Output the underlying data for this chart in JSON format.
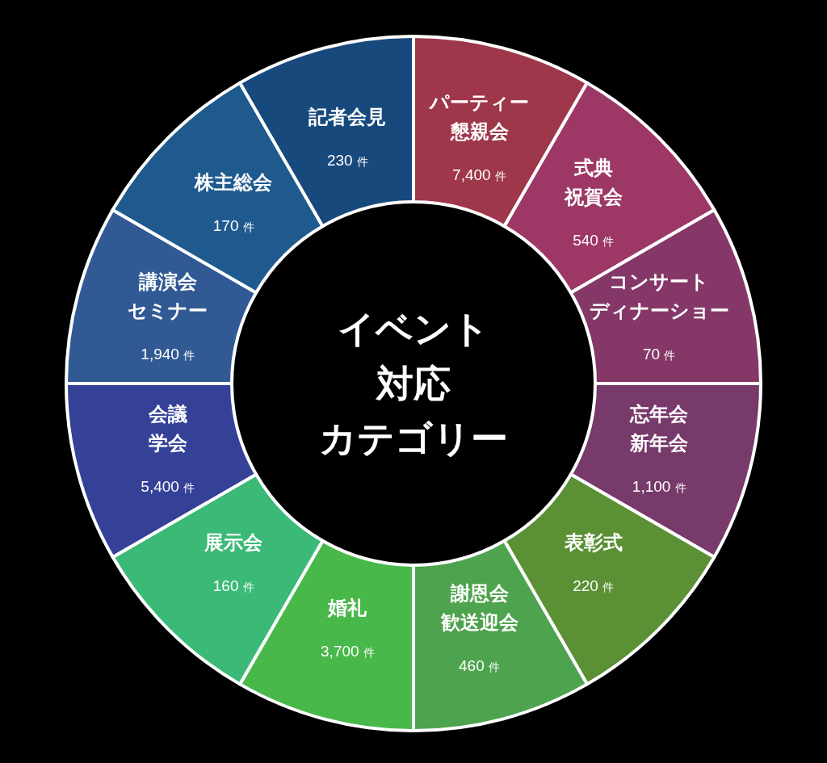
{
  "chart_data": {
    "type": "other",
    "title": "イベント対応カテゴリー",
    "categories": [
      "パーティー懇親会",
      "式典祝賀会",
      "コンサートディナーショー",
      "忘年会新年会",
      "表彰式",
      "謝恩会歓送迎会",
      "婚礼",
      "展示会",
      "会議学会",
      "講演会セミナー",
      "株主総会",
      "記者会見"
    ],
    "values": [
      7400,
      540,
      70,
      1100,
      220,
      460,
      3700,
      160,
      5400,
      1940,
      170,
      230
    ],
    "value_labels": [
      "7,400 件",
      "540 件",
      "70 件",
      "1,100 件",
      "220 件",
      "460 件",
      "3,700 件",
      "160 件",
      "5,400 件",
      "1,940 件",
      "170 件",
      "230 件"
    ],
    "colors": [
      "#9e374a",
      "#9d3866",
      "#853867",
      "#773a6b",
      "#5b9035",
      "#4ea34e",
      "#48b84a",
      "#3bb977",
      "#344196",
      "#315a95",
      "#1f5a8f",
      "#18497c"
    ]
  }
}
